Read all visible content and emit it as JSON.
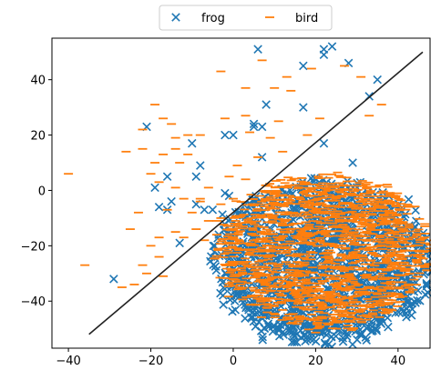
{
  "chart_data": {
    "type": "scatter",
    "title": "",
    "xlabel": "",
    "ylabel": "",
    "xlim": [
      -44,
      48
    ],
    "ylim": [
      -57,
      55
    ],
    "xticks": [
      -40,
      -20,
      0,
      20,
      40
    ],
    "yticks": [
      -40,
      -20,
      0,
      20,
      40
    ],
    "grid": false,
    "legend": {
      "placement": "top-center outside",
      "ncol": 2
    },
    "colors": {
      "frog": "#1f77b4",
      "bird": "#ff7f0e",
      "line": "#222222"
    },
    "series": [
      {
        "name": "frog",
        "marker": "x",
        "points": [
          [
            6,
            51
          ],
          [
            17,
            45
          ],
          [
            22,
            49
          ],
          [
            22,
            51
          ],
          [
            24,
            52
          ],
          [
            28,
            46
          ],
          [
            35,
            40
          ],
          [
            33,
            34
          ],
          [
            7,
            23
          ],
          [
            8,
            31
          ],
          [
            17,
            30
          ],
          [
            5,
            24
          ],
          [
            5,
            23
          ],
          [
            22,
            17
          ],
          [
            -21,
            23
          ],
          [
            -10,
            17
          ],
          [
            -2,
            20
          ],
          [
            0,
            20
          ],
          [
            7,
            12
          ],
          [
            29,
            10
          ],
          [
            -16,
            5
          ],
          [
            -9,
            5
          ],
          [
            -8,
            9
          ],
          [
            -19,
            1
          ],
          [
            -18,
            -6
          ],
          [
            -16,
            -7
          ],
          [
            -15,
            -4
          ],
          [
            -9,
            -5
          ],
          [
            -5,
            -7
          ],
          [
            -2,
            -1
          ],
          [
            -1,
            -2
          ],
          [
            -13,
            -19
          ],
          [
            -29,
            -32
          ],
          [
            -7,
            -7
          ]
        ],
        "cluster": {
          "center": [
            22,
            -26
          ],
          "approx_extent": "x from -12 to 47, y from -54 to 6",
          "density": "dense"
        }
      },
      {
        "name": "bird",
        "marker": "_",
        "points": [
          [
            -40,
            6
          ],
          [
            -25,
            -14
          ],
          [
            -22,
            22
          ],
          [
            -19,
            31
          ],
          [
            -17,
            26
          ],
          [
            -15,
            24
          ],
          [
            -22,
            15
          ],
          [
            -26,
            14
          ],
          [
            -17,
            13
          ],
          [
            -19,
            10
          ],
          [
            -14,
            15
          ],
          [
            -11,
            13
          ],
          [
            -13,
            10
          ],
          [
            -20,
            6
          ],
          [
            -18,
            3
          ],
          [
            -14,
            1
          ],
          [
            -12,
            -3
          ],
          [
            -16,
            -7
          ],
          [
            -10,
            -8
          ],
          [
            -6,
            -11
          ],
          [
            -3,
            -10
          ],
          [
            -9,
            -14
          ],
          [
            -14,
            -15
          ],
          [
            -20,
            -20
          ],
          [
            -12,
            -17
          ],
          [
            -7,
            -18
          ],
          [
            -4,
            -16
          ],
          [
            -18,
            -24
          ],
          [
            -22,
            -27
          ],
          [
            -36,
            -27
          ],
          [
            -21,
            -30
          ],
          [
            -17,
            -31
          ],
          [
            -24,
            -34
          ],
          [
            -27,
            -35
          ],
          [
            -3,
            43
          ],
          [
            7,
            47
          ],
          [
            13,
            41
          ],
          [
            3,
            37
          ],
          [
            10,
            37
          ],
          [
            14,
            36
          ],
          [
            19,
            44
          ],
          [
            27,
            45
          ],
          [
            31,
            41
          ],
          [
            36,
            31
          ],
          [
            -2,
            26
          ],
          [
            3,
            27
          ],
          [
            11,
            25
          ],
          [
            21,
            26
          ],
          [
            33,
            27
          ],
          [
            18,
            20
          ],
          [
            9,
            19
          ],
          [
            4,
            21
          ],
          [
            -8,
            20
          ],
          [
            -11,
            20
          ],
          [
            -14,
            19
          ],
          [
            1,
            9
          ],
          [
            -1,
            5
          ],
          [
            3,
            4
          ],
          [
            -6,
            1
          ],
          [
            -8,
            -3
          ],
          [
            -3,
            -5
          ],
          [
            -4,
            -11
          ],
          [
            6,
            12
          ],
          [
            12,
            14
          ],
          [
            15,
            2
          ],
          [
            0,
            -3
          ],
          [
            -8,
            -4
          ],
          [
            -23,
            -8
          ],
          [
            -18,
            -17
          ]
        ],
        "cluster": {
          "center": [
            22,
            -22
          ],
          "approx_extent": "x from -9 to 47, y from -51 to 7",
          "density": "dense"
        }
      }
    ],
    "reference_line": {
      "from": [
        -35,
        -52
      ],
      "to": [
        46,
        50
      ]
    }
  }
}
